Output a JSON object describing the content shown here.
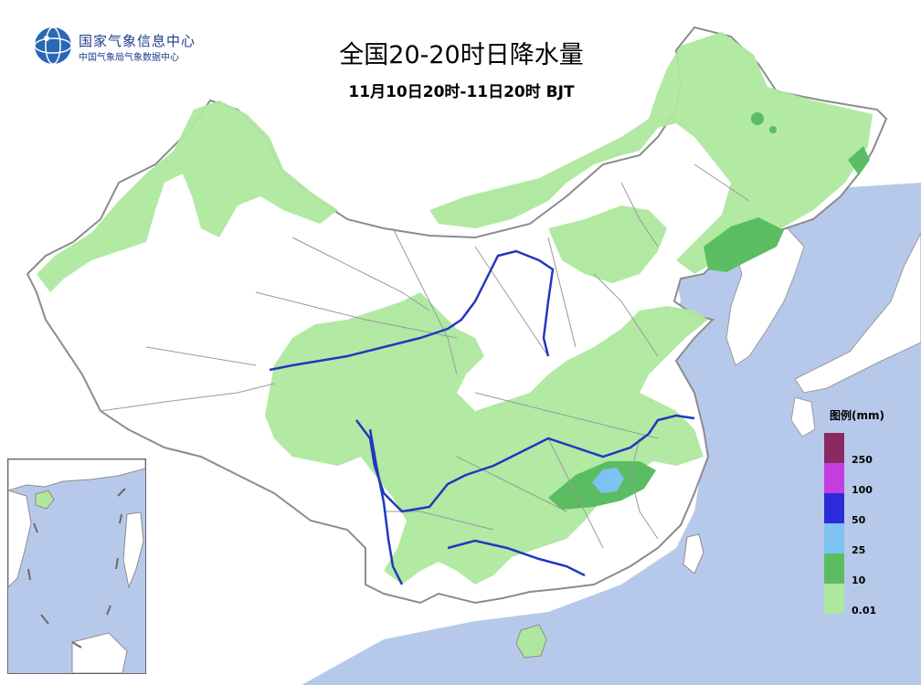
{
  "header": {
    "org_name": "国家气象信息中心",
    "org_sub": "中国气象局气象数据中心",
    "title": "全国20-20时日降水量",
    "subtitle": "11月10日20时-11日20时 BJT"
  },
  "logo": {
    "icon": "globe-icon"
  },
  "legend": {
    "title": "图例(mm)",
    "items": [
      {
        "label": "250",
        "color": "#8a2a63"
      },
      {
        "label": "100",
        "color": "#c63ddf"
      },
      {
        "label": "50",
        "color": "#2b2bdc"
      },
      {
        "label": "25",
        "color": "#7ec2f2"
      },
      {
        "label": "10",
        "color": "#5bbd62"
      },
      {
        "label": "0.01",
        "color": "#aee89e"
      }
    ]
  },
  "colors": {
    "sea": "#b7c9ea",
    "land": "#ffffff",
    "border": "#8c8c8c",
    "river": "#2038c0",
    "precip_light": "#aee89e",
    "precip_moderate": "#5bbd62",
    "precip_heavy": "#7ec2f2"
  }
}
